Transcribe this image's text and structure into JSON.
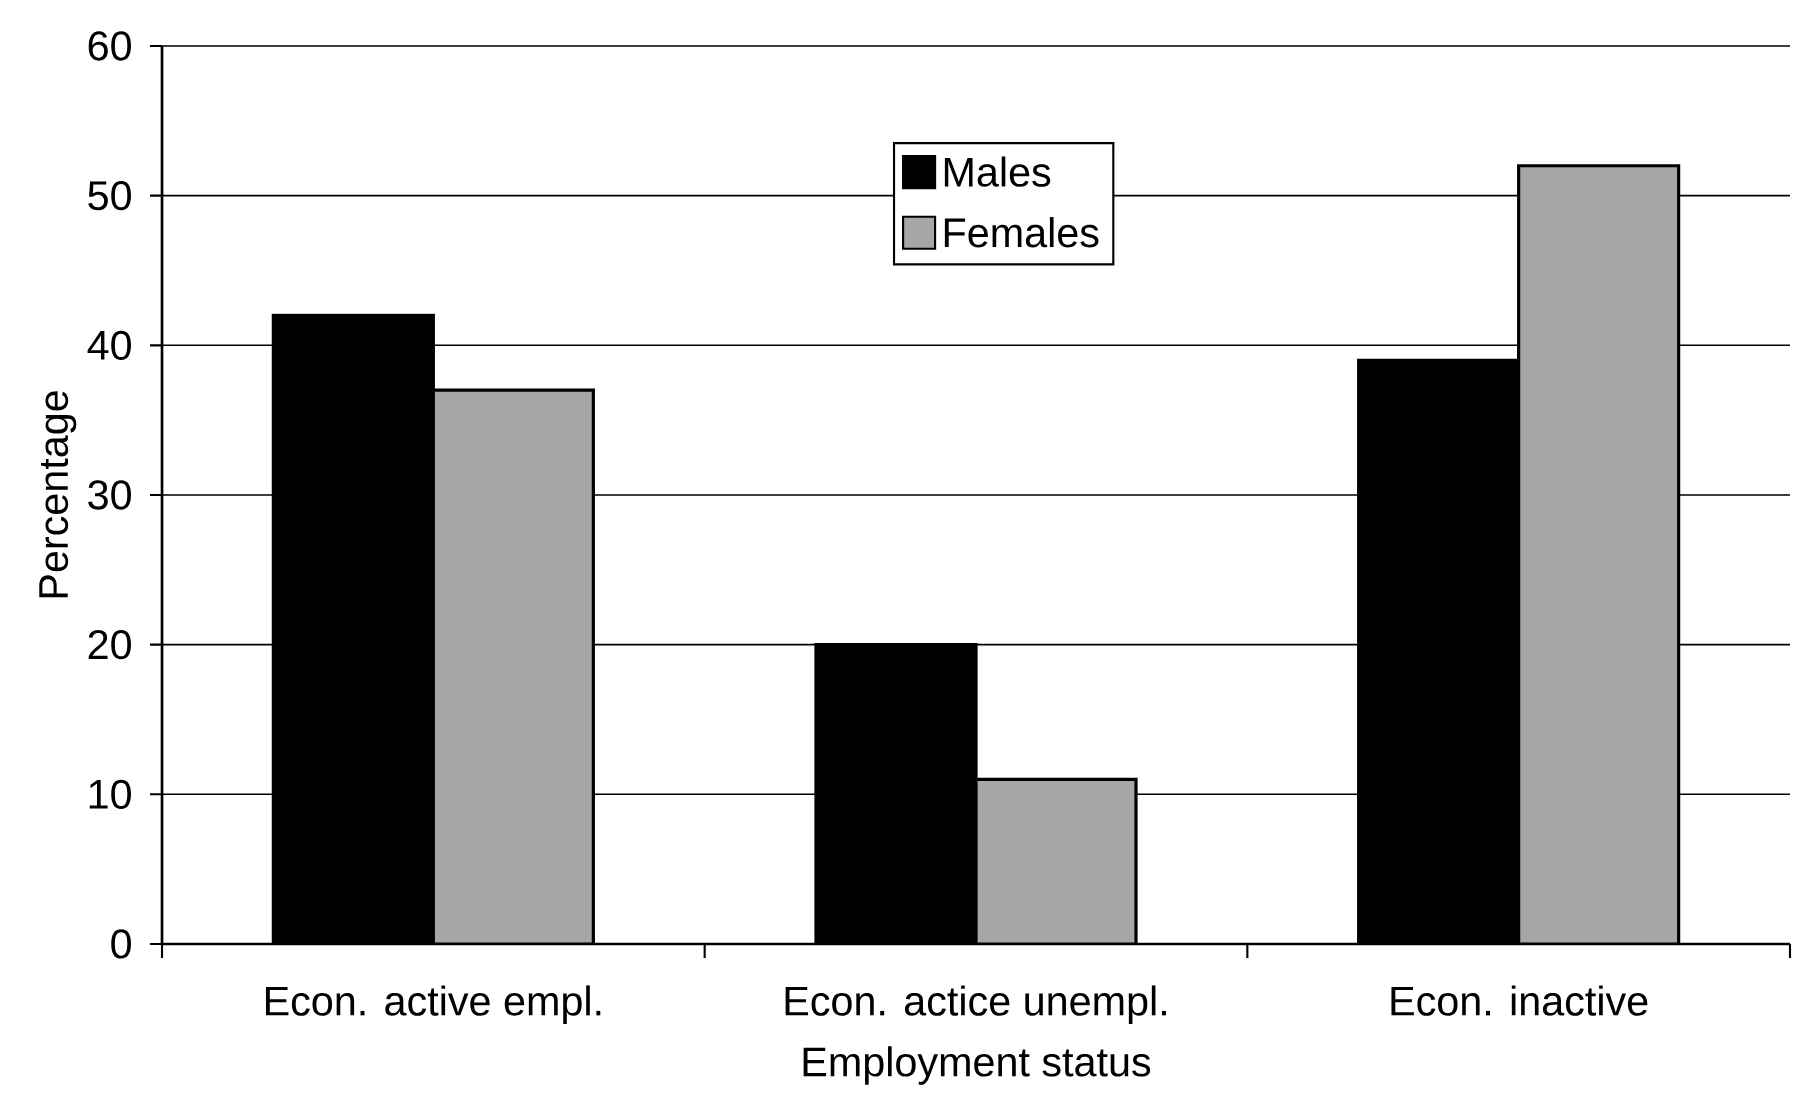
{
  "chart_data": {
    "type": "bar",
    "xlabel": "Employment status",
    "ylabel": "Percentage",
    "categories": [
      "Econ. active empl.",
      "Econ. actice unempl.",
      "Econ. inactive"
    ],
    "series": [
      {
        "name": "Males",
        "color": "#000000",
        "values": [
          42,
          20,
          39
        ]
      },
      {
        "name": "Females",
        "color": "#a6a6a6",
        "values": [
          37,
          11,
          52
        ]
      }
    ],
    "ylim": [
      0,
      60
    ],
    "yticks": [
      0,
      10,
      20,
      30,
      40,
      50,
      60
    ],
    "grid": "y",
    "legend": "top"
  }
}
